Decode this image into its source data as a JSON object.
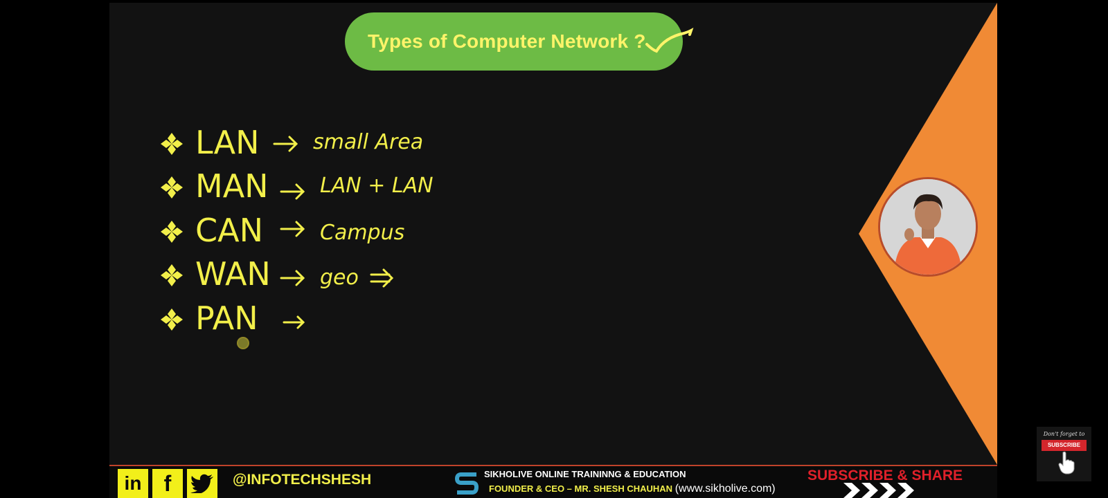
{
  "slide": {
    "title": "Types of Computer Network ?",
    "items": [
      {
        "abbr": "LAN",
        "note": "small Area"
      },
      {
        "abbr": "MAN",
        "note": "LAN + LAN"
      },
      {
        "abbr": "CAN",
        "note": "Campus"
      },
      {
        "abbr": "WAN",
        "note": "geo"
      },
      {
        "abbr": "PAN",
        "note": ""
      }
    ]
  },
  "footer": {
    "social": [
      "in",
      "f",
      "twitter-icon"
    ],
    "handle": "@INFOTECHSHESH",
    "org_line": "SIKHOLIVE ONLINE TRAININNG & EDUCATION",
    "founder_line": "FOUNDER & CEO – MR. SHESH CHAUHAN",
    "url": "(www.sikholive.com)",
    "subscribe_share": "SUBSCRIBE & SHARE"
  },
  "subscribe_widget": {
    "caption": "Don't forget to",
    "button": "SUBSCRIBE"
  },
  "colors": {
    "background": "#121212",
    "title_pill": "#6dbb45",
    "title_text": "#fff46a",
    "chalk_yellow": "#f2ef4a",
    "orange": "#f08a35",
    "subscribe_red": "#e0202a"
  }
}
